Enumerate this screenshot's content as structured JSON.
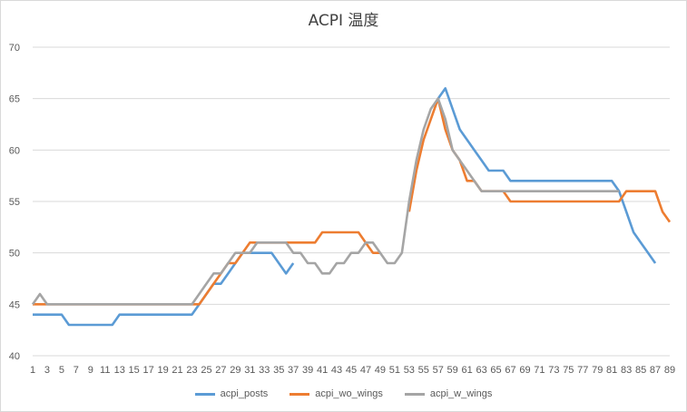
{
  "chart_data": {
    "type": "line",
    "title": "ACPI 温度",
    "xlabel": "",
    "ylabel": "",
    "ylim": [
      40,
      70
    ],
    "yticks": [
      40,
      45,
      50,
      55,
      60,
      65,
      70
    ],
    "x": [
      1,
      2,
      3,
      4,
      5,
      6,
      7,
      8,
      9,
      10,
      11,
      12,
      13,
      14,
      15,
      16,
      17,
      18,
      19,
      20,
      21,
      22,
      23,
      24,
      25,
      26,
      27,
      28,
      29,
      30,
      31,
      32,
      33,
      34,
      35,
      36,
      37,
      38,
      39,
      40,
      41,
      42,
      43,
      44,
      45,
      46,
      47,
      48,
      49,
      50,
      51,
      52,
      53,
      54,
      55,
      56,
      57,
      58,
      59,
      60,
      61,
      62,
      63,
      64,
      65,
      66,
      67,
      68,
      69,
      70,
      71,
      72,
      73,
      74,
      75,
      76,
      77,
      78,
      79,
      80,
      81,
      82,
      83,
      84,
      85,
      86,
      87,
      88,
      89
    ],
    "xtick_labels": [
      "1",
      "3",
      "5",
      "7",
      "9",
      "11",
      "13",
      "15",
      "17",
      "19",
      "21",
      "23",
      "25",
      "27",
      "29",
      "31",
      "33",
      "35",
      "37",
      "39",
      "41",
      "43",
      "45",
      "47",
      "49",
      "51",
      "53",
      "55",
      "57",
      "59",
      "61",
      "63",
      "65",
      "67",
      "69",
      "71",
      "73",
      "75",
      "77",
      "79",
      "81",
      "83",
      "85",
      "87",
      "89"
    ],
    "grid": true,
    "legend_position": "bottom",
    "series": [
      {
        "name": "acpi_posts",
        "color": "#5b9bd5",
        "values": [
          44,
          44,
          44,
          44,
          44,
          43,
          43,
          43,
          43,
          43,
          43,
          43,
          44,
          44,
          44,
          44,
          44,
          44,
          44,
          44,
          44,
          44,
          44,
          45,
          46,
          47,
          47,
          48,
          49,
          50,
          50,
          50,
          50,
          50,
          49,
          48,
          49,
          null,
          null,
          null,
          null,
          null,
          null,
          null,
          null,
          null,
          null,
          null,
          null,
          null,
          null,
          null,
          null,
          null,
          null,
          null,
          65,
          66,
          64,
          62,
          61,
          60,
          59,
          58,
          58,
          58,
          57,
          57,
          57,
          57,
          57,
          57,
          57,
          57,
          57,
          57,
          57,
          57,
          57,
          57,
          57,
          56,
          54,
          52,
          51,
          50,
          49,
          null,
          null
        ]
      },
      {
        "name": "acpi_wo_wings",
        "color": "#ed7d31",
        "values": [
          45,
          45,
          45,
          45,
          45,
          45,
          45,
          45,
          45,
          45,
          45,
          45,
          45,
          45,
          45,
          45,
          45,
          45,
          45,
          45,
          45,
          45,
          45,
          45,
          46,
          47,
          48,
          49,
          49,
          50,
          51,
          51,
          51,
          51,
          51,
          51,
          51,
          51,
          51,
          51,
          52,
          52,
          52,
          52,
          52,
          52,
          51,
          50,
          50,
          null,
          null,
          null,
          54,
          58,
          61,
          63,
          65,
          62,
          60,
          59,
          57,
          57,
          56,
          56,
          56,
          56,
          55,
          55,
          55,
          55,
          55,
          55,
          55,
          55,
          55,
          55,
          55,
          55,
          55,
          55,
          55,
          55,
          56,
          56,
          56,
          56,
          56,
          54,
          53
        ]
      },
      {
        "name": "acpi_w_wings",
        "color": "#a5a5a5",
        "values": [
          45,
          46,
          45,
          45,
          45,
          45,
          45,
          45,
          45,
          45,
          45,
          45,
          45,
          45,
          45,
          45,
          45,
          45,
          45,
          45,
          45,
          45,
          45,
          46,
          47,
          48,
          48,
          49,
          50,
          50,
          50,
          51,
          51,
          51,
          51,
          51,
          50,
          50,
          49,
          49,
          48,
          48,
          49,
          49,
          50,
          50,
          51,
          51,
          50,
          49,
          49,
          50,
          55,
          59,
          62,
          64,
          65,
          63,
          60,
          59,
          58,
          57,
          56,
          56,
          56,
          56,
          56,
          56,
          56,
          56,
          56,
          56,
          56,
          56,
          56,
          56,
          56,
          56,
          56,
          56,
          56,
          56,
          null,
          null,
          null,
          null,
          null,
          null,
          null
        ]
      }
    ]
  }
}
